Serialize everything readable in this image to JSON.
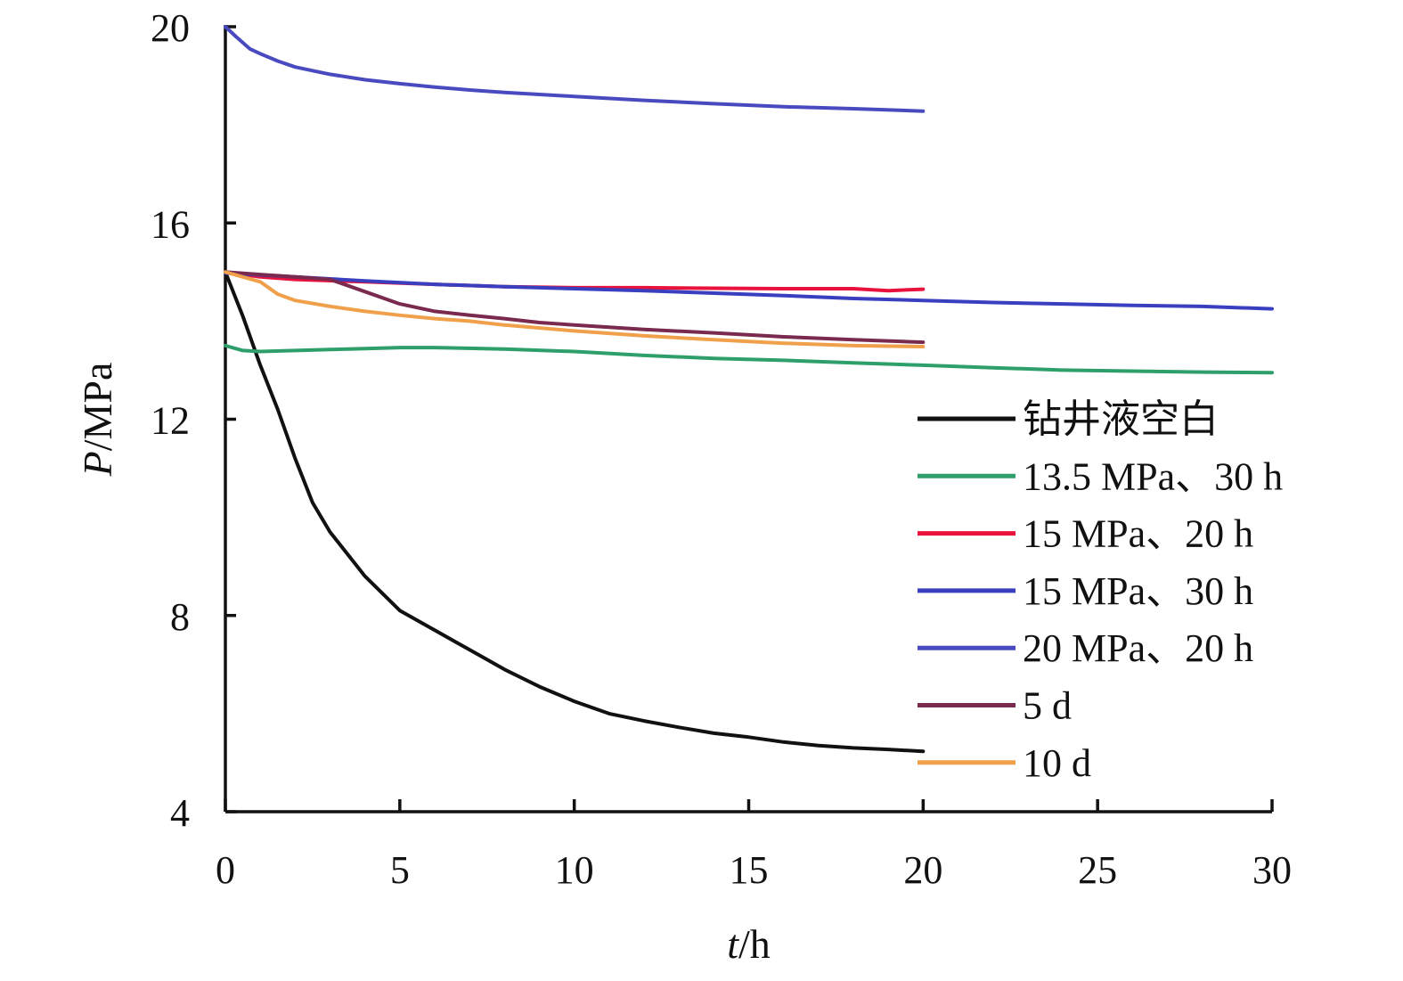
{
  "chart_data": {
    "type": "line",
    "title": "",
    "xlabel_italic": "t",
    "xlabel_unit": "/h",
    "ylabel_italic": "P",
    "ylabel_unit": "/MPa",
    "xlim": [
      0,
      30
    ],
    "ylim": [
      4,
      20
    ],
    "xticks": [
      0,
      5,
      10,
      15,
      20,
      25,
      30
    ],
    "yticks": [
      4,
      8,
      12,
      16,
      20
    ],
    "grid": false,
    "legend_position": "right",
    "series": [
      {
        "name": "钻井液空白",
        "color": "#111111",
        "x": [
          0,
          0.5,
          1,
          1.5,
          2,
          2.5,
          3,
          4,
          5,
          6,
          7,
          8,
          9,
          10,
          11,
          12,
          13,
          14,
          15,
          16,
          17,
          18,
          19,
          20
        ],
        "y": [
          15,
          14.1,
          13.1,
          12.2,
          11.2,
          10.3,
          9.7,
          8.8,
          8.1,
          7.7,
          7.3,
          6.9,
          6.55,
          6.25,
          6.0,
          5.85,
          5.72,
          5.6,
          5.52,
          5.42,
          5.35,
          5.3,
          5.27,
          5.23
        ]
      },
      {
        "name": "13.5 MPa、30 h",
        "color": "#2e9e6b",
        "x": [
          0,
          0.5,
          1,
          2,
          3,
          4,
          5,
          6,
          8,
          10,
          12,
          14,
          16,
          18,
          20,
          22,
          24,
          26,
          28,
          30
        ],
        "y": [
          13.5,
          13.4,
          13.38,
          13.4,
          13.42,
          13.44,
          13.46,
          13.46,
          13.43,
          13.38,
          13.3,
          13.24,
          13.2,
          13.15,
          13.1,
          13.05,
          13.0,
          12.98,
          12.96,
          12.95
        ]
      },
      {
        "name": "15 MPa、20 h",
        "color": "#e8123c",
        "x": [
          0,
          1,
          2,
          4,
          6,
          8,
          10,
          12,
          14,
          16,
          18,
          19,
          20
        ],
        "y": [
          15,
          14.9,
          14.85,
          14.8,
          14.75,
          14.7,
          14.68,
          14.68,
          14.67,
          14.66,
          14.66,
          14.62,
          14.65
        ]
      },
      {
        "name": "15 MPa、30 h",
        "color": "#3a3fbf",
        "x": [
          0,
          2,
          4,
          6,
          8,
          10,
          12,
          14,
          16,
          18,
          20,
          22,
          24,
          26,
          28,
          30
        ],
        "y": [
          14.98,
          14.9,
          14.82,
          14.75,
          14.7,
          14.66,
          14.62,
          14.57,
          14.52,
          14.46,
          14.42,
          14.38,
          14.35,
          14.32,
          14.3,
          14.25
        ]
      },
      {
        "name": "20 MPa、20 h",
        "color": "#4a4ac0",
        "x": [
          0,
          0.3,
          0.7,
          1,
          1.5,
          2,
          3,
          4,
          5,
          6,
          7,
          8,
          10,
          12,
          14,
          16,
          18,
          20
        ],
        "y": [
          20,
          19.8,
          19.55,
          19.45,
          19.3,
          19.18,
          19.03,
          18.92,
          18.84,
          18.77,
          18.71,
          18.66,
          18.58,
          18.5,
          18.43,
          18.37,
          18.33,
          18.28
        ]
      },
      {
        "name": "5 d",
        "color": "#7a2a4e",
        "x": [
          0,
          1,
          2,
          3,
          4,
          5,
          6,
          7,
          8,
          9,
          10,
          12,
          14,
          16,
          18,
          20
        ],
        "y": [
          15,
          14.95,
          14.9,
          14.85,
          14.6,
          14.35,
          14.2,
          14.12,
          14.05,
          13.97,
          13.92,
          13.83,
          13.76,
          13.68,
          13.62,
          13.57
        ]
      },
      {
        "name": "10 d",
        "color": "#f0a04b",
        "x": [
          0,
          0.5,
          1,
          1.5,
          2,
          3,
          4,
          5,
          6,
          7,
          8,
          10,
          12,
          14,
          16,
          18,
          20
        ],
        "y": [
          15,
          14.9,
          14.8,
          14.55,
          14.42,
          14.3,
          14.2,
          14.12,
          14.05,
          14.0,
          13.92,
          13.8,
          13.7,
          13.62,
          13.55,
          13.5,
          13.48
        ]
      }
    ]
  }
}
